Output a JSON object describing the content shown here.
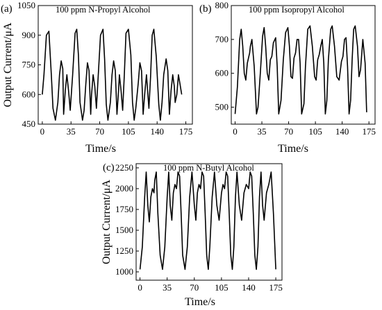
{
  "chart_data": [
    {
      "type": "line",
      "panel_label": "(a)",
      "annotation": "100 ppm N-Propyl Alcohol",
      "xlabel": "Time/s",
      "ylabel": "Output Current/μA",
      "xlim": [
        -5,
        183
      ],
      "ylim": [
        450,
        1050
      ],
      "xticks": [
        0,
        35,
        70,
        105,
        140,
        175
      ],
      "yticks": [
        450,
        600,
        750,
        900,
        1050
      ],
      "grid": false,
      "series": [
        {
          "x": [
            0,
            2,
            5,
            8,
            11,
            13,
            16,
            19,
            21,
            23,
            25,
            26,
            28,
            30,
            32,
            34,
            37,
            40,
            42,
            44,
            46,
            49,
            51,
            53,
            55,
            57,
            59,
            60,
            62,
            64,
            66,
            68,
            71,
            74,
            76,
            78,
            80,
            83,
            85,
            87,
            89,
            91,
            93,
            94,
            96,
            98,
            100,
            102,
            105,
            108,
            110,
            112,
            114,
            117,
            119,
            121,
            123,
            125,
            127,
            128,
            130,
            132,
            134,
            136,
            139,
            142,
            144,
            146,
            148,
            151,
            153,
            155,
            157,
            159,
            161,
            162,
            164,
            166,
            168,
            170
          ],
          "y": [
            600,
            700,
            900,
            920,
            700,
            530,
            470,
            560,
            700,
            770,
            730,
            500,
            620,
            700,
            620,
            520,
            700,
            910,
            930,
            800,
            560,
            470,
            520,
            650,
            760,
            720,
            500,
            600,
            700,
            640,
            530,
            680,
            900,
            930,
            780,
            550,
            470,
            560,
            700,
            770,
            720,
            500,
            620,
            700,
            620,
            520,
            700,
            910,
            930,
            800,
            560,
            470,
            530,
            660,
            760,
            720,
            500,
            610,
            700,
            640,
            530,
            690,
            900,
            930,
            790,
            550,
            470,
            560,
            700,
            780,
            720,
            500,
            620,
            700,
            640,
            560,
            600,
            700,
            650,
            600
          ]
        }
      ]
    },
    {
      "type": "line",
      "panel_label": "(b)",
      "annotation": "100 ppm Isopropyl Alcohol",
      "xlabel": "Time/s",
      "ylabel": "",
      "xlim": [
        -5,
        183
      ],
      "ylim": [
        450,
        800
      ],
      "xticks": [
        0,
        35,
        70,
        105,
        140,
        175
      ],
      "yticks": [
        500,
        600,
        700,
        800
      ],
      "grid": false,
      "series": [
        {
          "x": [
            0,
            3,
            6,
            8,
            10,
            12,
            14,
            16,
            18,
            19,
            20,
            22,
            25,
            28,
            30,
            33,
            36,
            38,
            40,
            42,
            44,
            46,
            48,
            50,
            53,
            55,
            57,
            60,
            63,
            66,
            69,
            71,
            73,
            75,
            77,
            79,
            81,
            83,
            85,
            87,
            90,
            92,
            95,
            98,
            101,
            104,
            106,
            108,
            110,
            112,
            114,
            116,
            118,
            120,
            122,
            125,
            127,
            130,
            133,
            136,
            139,
            141,
            143,
            145,
            147,
            149,
            151,
            153,
            155,
            157,
            160,
            162,
            164,
            167,
            170,
            172
          ],
          "y": [
            480,
            560,
            700,
            730,
            680,
            600,
            580,
            630,
            650,
            660,
            680,
            700,
            620,
            480,
            500,
            600,
            710,
            735,
            680,
            600,
            580,
            640,
            650,
            690,
            705,
            620,
            480,
            520,
            640,
            720,
            735,
            680,
            590,
            585,
            645,
            660,
            700,
            700,
            630,
            480,
            510,
            620,
            730,
            740,
            680,
            590,
            580,
            640,
            655,
            680,
            700,
            630,
            480,
            520,
            640,
            730,
            740,
            680,
            590,
            580,
            635,
            650,
            700,
            705,
            620,
            480,
            520,
            640,
            730,
            740,
            680,
            590,
            610,
            700,
            630,
            485
          ]
        }
      ]
    },
    {
      "type": "line",
      "panel_label": "(c)",
      "annotation": "100 ppm N-Butyl Alcohol",
      "xlabel": "Time/s",
      "ylabel": "Output Current/μA",
      "xlim": [
        -5,
        183
      ],
      "ylim": [
        900,
        2300
      ],
      "xticks": [
        0,
        35,
        70,
        105,
        140,
        175
      ],
      "yticks": [
        1000,
        1250,
        1500,
        1750,
        2000,
        2250
      ],
      "grid": false,
      "series": [
        {
          "x": [
            0,
            3,
            6,
            8,
            10,
            12,
            14,
            16,
            18,
            19,
            21,
            23,
            26,
            29,
            32,
            35,
            37,
            39,
            41,
            43,
            45,
            47,
            49,
            51,
            53,
            55,
            58,
            61,
            64,
            67,
            70,
            72,
            74,
            76,
            78,
            80,
            82,
            84,
            86,
            88,
            90,
            93,
            96,
            99,
            102,
            105,
            107,
            109,
            111,
            113,
            115,
            117,
            119,
            121,
            123,
            125,
            128,
            131,
            134,
            137,
            140,
            142,
            144,
            146,
            148,
            150,
            152,
            154,
            156,
            158,
            160,
            163,
            166,
            169,
            172,
            175
          ],
          "y": [
            1030,
            1300,
            1900,
            2200,
            1800,
            1600,
            1900,
            2000,
            1950,
            2100,
            2200,
            1700,
            1200,
            1030,
            1300,
            1900,
            2200,
            1800,
            1620,
            1950,
            2050,
            2000,
            2200,
            2150,
            1700,
            1200,
            1030,
            1300,
            1900,
            2200,
            1800,
            1620,
            1950,
            2050,
            2000,
            2200,
            2150,
            1700,
            1200,
            1030,
            1300,
            1900,
            2200,
            1800,
            1620,
            1950,
            2050,
            2000,
            2200,
            2150,
            1700,
            1200,
            1030,
            1300,
            1900,
            2200,
            1800,
            1620,
            1950,
            2050,
            2000,
            2200,
            2150,
            1700,
            1200,
            1030,
            1300,
            1900,
            2200,
            1800,
            1620,
            1950,
            2050,
            2200,
            1700,
            1030
          ]
        }
      ]
    }
  ]
}
